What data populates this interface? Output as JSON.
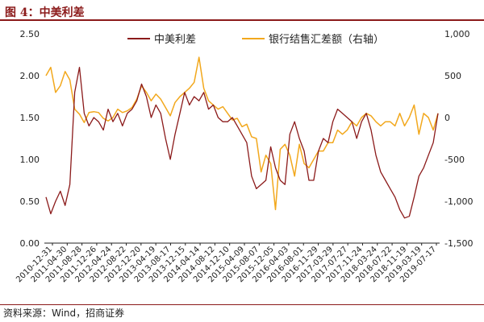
{
  "figure_title": "图 4：中美利差",
  "source": "资料来源：Wind，招商证券",
  "chart_data": {
    "type": "line",
    "left_axis": {
      "ylim": [
        0.0,
        2.5
      ],
      "ticks": [
        "0.00",
        "0.50",
        "1.00",
        "1.50",
        "2.00",
        "2.50"
      ],
      "values": [
        0,
        0.5,
        1,
        1.5,
        2,
        2.5
      ]
    },
    "right_axis": {
      "ylim": [
        -1500,
        1000
      ],
      "ticks": [
        "-1,500",
        "-1,000",
        "-500",
        "0",
        "500",
        "1,000"
      ],
      "values": [
        -1500,
        -1000,
        -500,
        0,
        500,
        1000
      ]
    },
    "x_labels": [
      "2010-12-31",
      "2011-04-30",
      "2011-08-28",
      "2011-12-26",
      "2012-04-24",
      "2012-08-22",
      "2012-12-20",
      "2013-04-19",
      "2013-08-17",
      "2013-12-15",
      "2014-04-14",
      "2014-08-12",
      "2014-12-10",
      "2015-04-09",
      "2015-08-07",
      "2015-12-05",
      "2016-04-03",
      "2016-08-01",
      "2016-11-29",
      "2017-03-29",
      "2017-07-27",
      "2017-11-24",
      "2018-03-24",
      "2018-07-22",
      "2018-11-19",
      "2019-03-19",
      "2019-07-17"
    ],
    "series": [
      {
        "name": "中美利差",
        "axis": "left",
        "color": "#8b1a1a",
        "values": [
          0.55,
          0.35,
          0.5,
          0.62,
          0.45,
          0.7,
          1.8,
          2.1,
          1.55,
          1.4,
          1.5,
          1.45,
          1.35,
          1.6,
          1.45,
          1.55,
          1.4,
          1.55,
          1.6,
          1.7,
          1.9,
          1.75,
          1.5,
          1.65,
          1.55,
          1.25,
          1.0,
          1.3,
          1.55,
          1.8,
          1.65,
          1.75,
          1.7,
          1.8,
          1.6,
          1.65,
          1.5,
          1.45,
          1.45,
          1.5,
          1.4,
          1.3,
          1.2,
          0.8,
          0.65,
          0.7,
          0.75,
          1.15,
          0.9,
          0.75,
          0.7,
          1.3,
          1.45,
          1.25,
          1.1,
          0.75,
          0.75,
          1.1,
          1.25,
          1.2,
          1.45,
          1.6,
          1.55,
          1.5,
          1.45,
          1.25,
          1.45,
          1.55,
          1.35,
          1.05,
          0.85,
          0.75,
          0.65,
          0.55,
          0.4,
          0.3,
          0.32,
          0.55,
          0.8,
          0.9,
          1.05,
          1.2,
          1.55
        ]
      },
      {
        "name": "银行结售汇差额（右轴）",
        "axis": "right",
        "color": "#f2a81d",
        "values": [
          500,
          600,
          300,
          380,
          550,
          450,
          100,
          40,
          -60,
          60,
          70,
          60,
          -10,
          -40,
          0,
          100,
          60,
          80,
          120,
          220,
          380,
          300,
          200,
          280,
          220,
          120,
          20,
          180,
          250,
          300,
          350,
          420,
          720,
          350,
          200,
          150,
          100,
          130,
          50,
          -30,
          -10,
          -110,
          -80,
          -230,
          -250,
          -650,
          -450,
          -550,
          -1100,
          -380,
          -320,
          -450,
          -700,
          -320,
          -550,
          -600,
          -500,
          -400,
          -400,
          -300,
          -300,
          -150,
          -200,
          -150,
          -50,
          -100,
          0,
          50,
          20,
          -50,
          -100,
          -50,
          -50,
          -100,
          50,
          -100,
          0,
          150,
          -200,
          50,
          0,
          -150,
          50
        ]
      }
    ],
    "legend": "top-center"
  }
}
